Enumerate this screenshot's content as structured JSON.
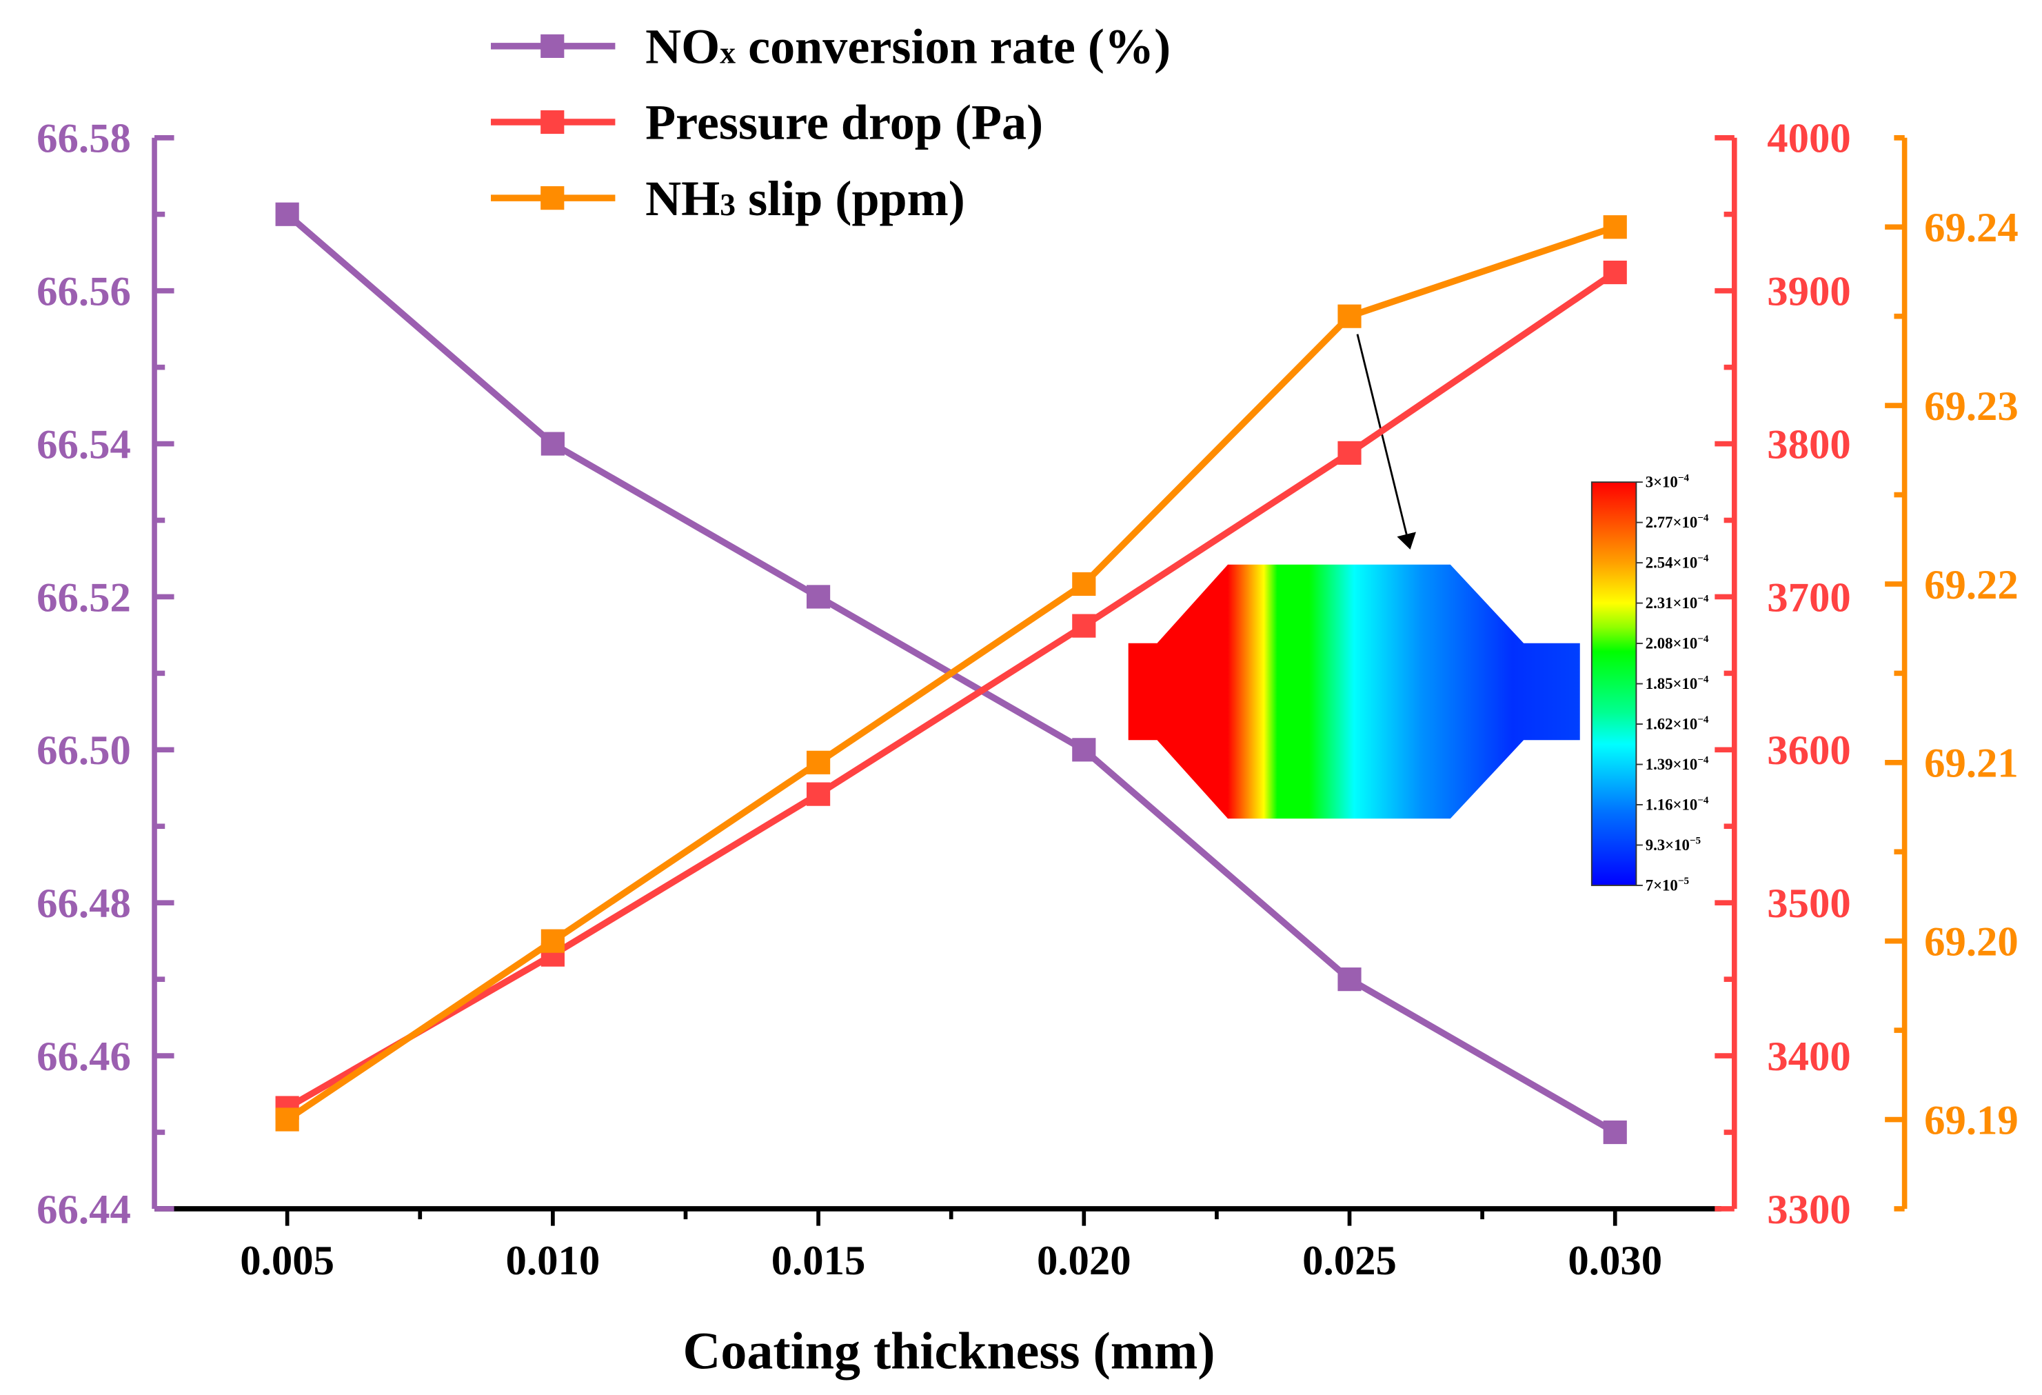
{
  "colors": {
    "nox": "#9B5FB0",
    "pressure": "#FF4242",
    "nh3": "#FF8C00",
    "axis": "#000000"
  },
  "chart_data": {
    "type": "line",
    "xlabel": "Coating thickness (mm)",
    "x": [
      0.005,
      0.01,
      0.015,
      0.02,
      0.025,
      0.03
    ],
    "x_tick_labels": [
      "0.005",
      "0.010",
      "0.015",
      "0.020",
      "0.025",
      "0.030"
    ],
    "xlim": [
      0.0025,
      0.032
    ],
    "legend_position": "top-left",
    "series": [
      {
        "name": "NOx conversion rate (%)",
        "legend_main": "NO",
        "legend_sub": "x",
        "legend_rest": " conversion rate (%)",
        "axis": "left",
        "values": [
          66.57,
          66.54,
          66.52,
          66.5,
          66.47,
          66.45
        ],
        "ylim": [
          66.44,
          66.58
        ],
        "ticks": [
          "66.44",
          "66.46",
          "66.48",
          "66.50",
          "66.52",
          "66.54",
          "66.56",
          "66.58"
        ]
      },
      {
        "name": "Pressure drop (Pa)",
        "legend_main": "Pressure drop (Pa)",
        "legend_sub": "",
        "legend_rest": "",
        "axis": "right",
        "values": [
          3366,
          3466,
          3571,
          3681,
          3794,
          3912
        ],
        "ylim": [
          3300,
          4000
        ],
        "ticks": [
          "3300",
          "3400",
          "3500",
          "3600",
          "3700",
          "3800",
          "3900",
          "4000"
        ]
      },
      {
        "name": "NH3 slip (ppm)",
        "legend_main": "NH",
        "legend_sub": "3",
        "legend_rest": " slip (ppm)",
        "axis": "right-offset",
        "values": [
          69.19,
          69.2,
          69.21,
          69.22,
          69.235,
          69.24
        ],
        "ylim": [
          69.185,
          69.245
        ],
        "ticks": [
          "69.19",
          "69.20",
          "69.21",
          "69.22",
          "69.23",
          "69.24"
        ]
      }
    ],
    "inset": {
      "annotation_arrow_points_to_x": 0.025,
      "colorbar_labels": [
        {
          "m": "3",
          "e": "−4"
        },
        {
          "m": "2.77",
          "e": "−4"
        },
        {
          "m": "2.54",
          "e": "−4"
        },
        {
          "m": "2.31",
          "e": "−4"
        },
        {
          "m": "2.08",
          "e": "−4"
        },
        {
          "m": "1.85",
          "e": "−4"
        },
        {
          "m": "1.62",
          "e": "−4"
        },
        {
          "m": "1.39",
          "e": "−4"
        },
        {
          "m": "1.16",
          "e": "−4"
        },
        {
          "m": "9.3",
          "e": "−5"
        },
        {
          "m": "7",
          "e": "−5"
        }
      ]
    }
  }
}
